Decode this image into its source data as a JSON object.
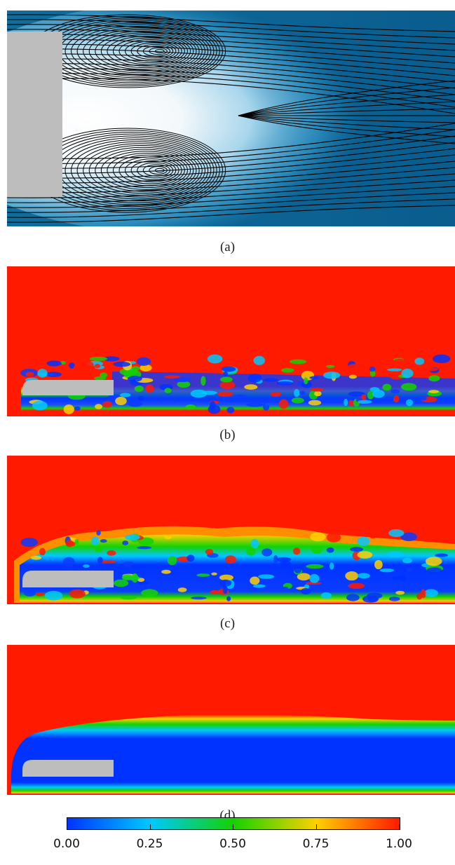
{
  "figure": {
    "panels": [
      {
        "id": "a",
        "caption": "(a)"
      },
      {
        "id": "b",
        "caption": "(b)"
      },
      {
        "id": "c",
        "caption": "(c)"
      },
      {
        "id": "d",
        "caption": "(d)"
      }
    ],
    "colorbar": {
      "ticks": [
        "0.00",
        "0.25",
        "0.50",
        "0.75",
        "1.00"
      ],
      "colors": [
        "#0033ff",
        "#00c8ff",
        "#14d200",
        "#ffd000",
        "#ff1a00"
      ]
    }
  }
}
